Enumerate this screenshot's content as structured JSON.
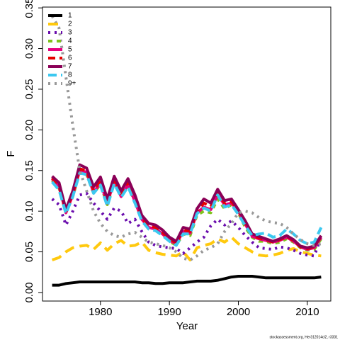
{
  "chart_data": {
    "type": "line",
    "x_label": "Year",
    "y_label": "F",
    "footer": "stockassessment.org, Her312014cl2, r3331",
    "x": [
      1973,
      1974,
      1975,
      1976,
      1977,
      1978,
      1979,
      1980,
      1981,
      1982,
      1983,
      1984,
      1985,
      1986,
      1987,
      1988,
      1989,
      1990,
      1991,
      1992,
      1993,
      1994,
      1995,
      1996,
      1997,
      1998,
      1999,
      2000,
      2001,
      2002,
      2003,
      2004,
      2005,
      2006,
      2007,
      2008,
      2009,
      2010,
      2011,
      2012
    ],
    "xlim": [
      1971.6,
      2013.4
    ],
    "xticks": [
      1980,
      1990,
      2000,
      2010
    ],
    "ylim": [
      -0.0105,
      0.351
    ],
    "yticks": [
      {
        "value": 0,
        "label": "0.00"
      },
      {
        "value": 0.05,
        "label": "0.05"
      },
      {
        "value": 0.1,
        "label": "0.10"
      },
      {
        "value": 0.15,
        "label": "0.15"
      },
      {
        "value": 0.2,
        "label": "0.20"
      },
      {
        "value": 0.25,
        "label": "0.25"
      },
      {
        "value": 0.3,
        "label": "0.30"
      },
      {
        "value": 0.35,
        "label": "0.35"
      }
    ],
    "legend": "top-left",
    "series": [
      {
        "name": "1",
        "color": "#000000",
        "dash": "none",
        "values": [
          0.009,
          0.009,
          0.011,
          0.012,
          0.013,
          0.013,
          0.013,
          0.013,
          0.013,
          0.013,
          0.013,
          0.013,
          0.013,
          0.012,
          0.012,
          0.011,
          0.011,
          0.012,
          0.012,
          0.012,
          0.013,
          0.014,
          0.014,
          0.014,
          0.015,
          0.017,
          0.019,
          0.02,
          0.02,
          0.02,
          0.019,
          0.018,
          0.018,
          0.018,
          0.018,
          0.018,
          0.018,
          0.018,
          0.018,
          0.019
        ]
      },
      {
        "name": "2",
        "color": "#FFC90E",
        "dash": "14 8",
        "values": [
          0.04,
          0.043,
          0.05,
          0.055,
          0.057,
          0.058,
          0.053,
          0.061,
          0.052,
          0.06,
          0.064,
          0.057,
          0.058,
          0.062,
          0.052,
          0.049,
          0.047,
          0.046,
          0.045,
          0.05,
          0.04,
          0.055,
          0.058,
          0.06,
          0.066,
          0.062,
          0.068,
          0.06,
          0.055,
          0.05,
          0.046,
          0.045,
          0.046,
          0.048,
          0.052,
          0.054,
          0.05,
          0.048,
          0.046,
          0.045
        ]
      },
      {
        "name": "3",
        "color": "#6A0DAD",
        "dash": "3 6",
        "values": [
          0.115,
          0.108,
          0.083,
          0.1,
          0.12,
          0.122,
          0.11,
          0.1,
          0.09,
          0.104,
          0.1,
          0.085,
          0.09,
          0.075,
          0.062,
          0.058,
          0.056,
          0.055,
          0.054,
          0.048,
          0.055,
          0.062,
          0.068,
          0.082,
          0.09,
          0.083,
          0.088,
          0.08,
          0.07,
          0.062,
          0.055,
          0.054,
          0.053,
          0.056,
          0.055,
          0.052,
          0.048,
          0.046,
          0.045,
          0.068
        ]
      },
      {
        "name": "4",
        "color": "#7FC31C",
        "dash": "6 6",
        "values": [
          0.138,
          0.128,
          0.098,
          0.118,
          0.148,
          0.145,
          0.122,
          0.133,
          0.108,
          0.135,
          0.118,
          0.13,
          0.112,
          0.09,
          0.08,
          0.078,
          0.072,
          0.063,
          0.058,
          0.072,
          0.07,
          0.095,
          0.1,
          0.098,
          0.115,
          0.103,
          0.108,
          0.098,
          0.08,
          0.068,
          0.063,
          0.063,
          0.06,
          0.062,
          0.066,
          0.062,
          0.055,
          0.052,
          0.053,
          0.066
        ]
      },
      {
        "name": "5",
        "color": "#E6007E",
        "dash": "none",
        "values": [
          0.14,
          0.13,
          0.098,
          0.12,
          0.15,
          0.148,
          0.123,
          0.135,
          0.11,
          0.137,
          0.118,
          0.133,
          0.112,
          0.09,
          0.08,
          0.078,
          0.072,
          0.064,
          0.06,
          0.075,
          0.073,
          0.098,
          0.105,
          0.102,
          0.12,
          0.108,
          0.11,
          0.1,
          0.084,
          0.069,
          0.066,
          0.064,
          0.062,
          0.064,
          0.068,
          0.063,
          0.056,
          0.053,
          0.055,
          0.068
        ]
      },
      {
        "name": "6",
        "color": "#E60000",
        "dash": "10 6",
        "values": [
          0.141,
          0.132,
          0.1,
          0.122,
          0.152,
          0.15,
          0.126,
          0.138,
          0.112,
          0.14,
          0.122,
          0.136,
          0.115,
          0.092,
          0.082,
          0.08,
          0.074,
          0.066,
          0.061,
          0.077,
          0.075,
          0.1,
          0.11,
          0.106,
          0.123,
          0.11,
          0.112,
          0.101,
          0.086,
          0.07,
          0.067,
          0.065,
          0.062,
          0.065,
          0.069,
          0.064,
          0.056,
          0.054,
          0.056,
          0.069
        ]
      },
      {
        "name": "7",
        "color": "#8B0057",
        "dash": "none",
        "values": [
          0.143,
          0.135,
          0.102,
          0.125,
          0.157,
          0.153,
          0.13,
          0.142,
          0.115,
          0.143,
          0.125,
          0.14,
          0.12,
          0.095,
          0.085,
          0.083,
          0.077,
          0.068,
          0.063,
          0.08,
          0.078,
          0.103,
          0.115,
          0.11,
          0.127,
          0.113,
          0.115,
          0.102,
          0.088,
          0.072,
          0.069,
          0.066,
          0.063,
          0.066,
          0.07,
          0.065,
          0.057,
          0.055,
          0.057,
          0.07
        ]
      },
      {
        "name": "8",
        "color": "#3CC8F0",
        "dash": "12 6",
        "values": [
          0.136,
          0.126,
          0.097,
          0.118,
          0.147,
          0.145,
          0.122,
          0.132,
          0.106,
          0.134,
          0.117,
          0.13,
          0.11,
          0.088,
          0.078,
          0.076,
          0.07,
          0.063,
          0.058,
          0.072,
          0.072,
          0.097,
          0.104,
          0.1,
          0.12,
          0.105,
          0.108,
          0.096,
          0.082,
          0.07,
          0.072,
          0.073,
          0.068,
          0.07,
          0.078,
          0.072,
          0.064,
          0.06,
          0.062,
          0.08
        ]
      },
      {
        "name": "9+",
        "color": "#999999",
        "dash": "3 6",
        "values": [
          0.34,
          0.325,
          0.265,
          0.205,
          0.15,
          0.125,
          0.1,
          0.085,
          0.075,
          0.07,
          0.068,
          0.072,
          0.074,
          0.068,
          0.062,
          0.06,
          0.058,
          0.055,
          0.05,
          0.042,
          0.04,
          0.045,
          0.052,
          0.055,
          0.06,
          0.075,
          0.085,
          0.098,
          0.1,
          0.098,
          0.092,
          0.088,
          0.086,
          0.085,
          0.08,
          0.072,
          0.065,
          0.06,
          0.058,
          0.06
        ]
      }
    ]
  }
}
